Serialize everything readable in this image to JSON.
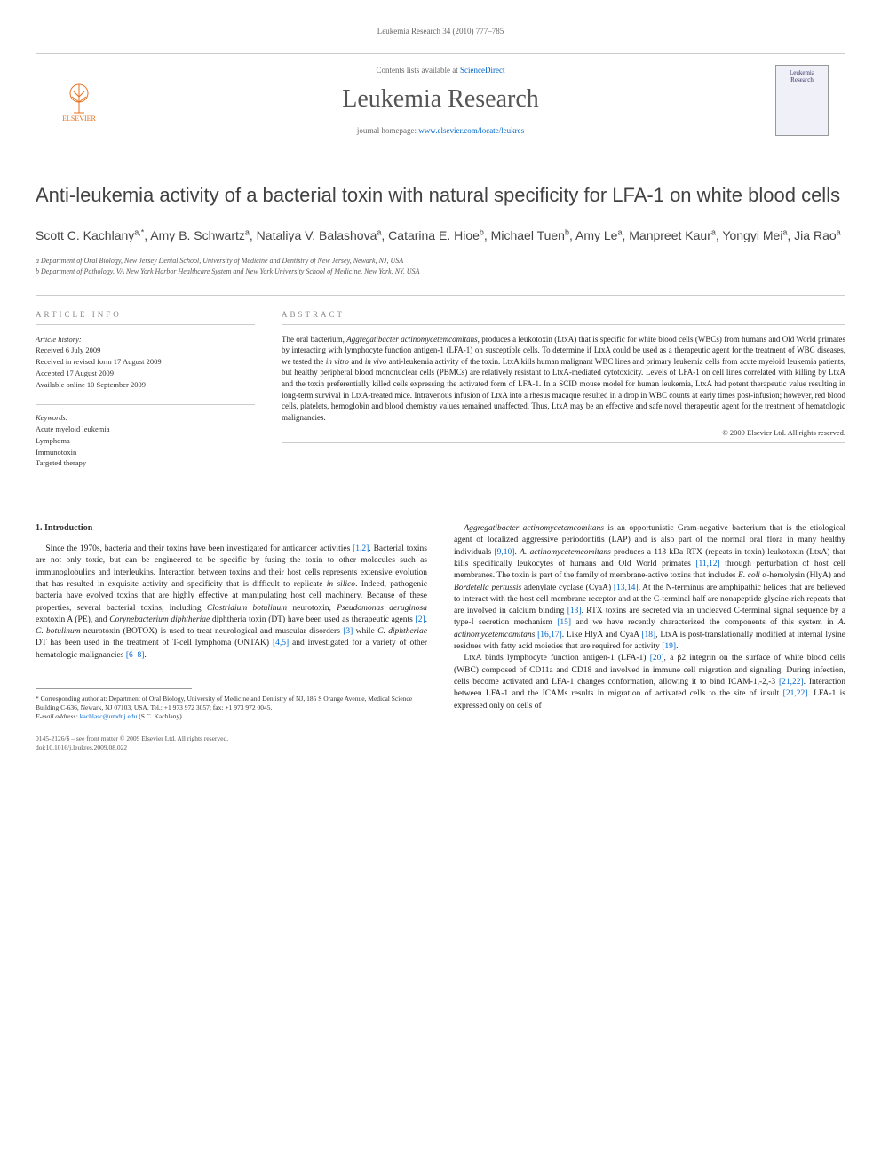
{
  "page_header": "Leukemia Research 34 (2010) 777–785",
  "masthead": {
    "contents_text": "Contents lists available at ",
    "contents_link": "ScienceDirect",
    "journal_title": "Leukemia Research",
    "homepage_label": "journal homepage: ",
    "homepage_url": "www.elsevier.com/locate/leukres",
    "publisher_name": "ELSEVIER",
    "cover_text": "Leukemia Research"
  },
  "article": {
    "title": "Anti-leukemia activity of a bacterial toxin with natural specificity for LFA-1 on white blood cells",
    "authors_html": "Scott C. Kachlany<sup>a,*</sup>, Amy B. Schwartz<sup>a</sup>, Nataliya V. Balashova<sup>a</sup>, Catarina E. Hioe<sup>b</sup>, Michael Tuen<sup>b</sup>, Amy Le<sup>a</sup>, Manpreet Kaur<sup>a</sup>, Yongyi Mei<sup>a</sup>, Jia Rao<sup>a</sup>",
    "affiliations": [
      "a Department of Oral Biology, New Jersey Dental School, University of Medicine and Dentistry of New Jersey, Newark, NJ, USA",
      "b Department of Pathology, VA New York Harbor Healthcare System and New York University School of Medicine, New York, NY, USA"
    ]
  },
  "info": {
    "article_info_label": "ARTICLE INFO",
    "abstract_label": "ABSTRACT",
    "history_head": "Article history:",
    "history": [
      "Received 6 July 2009",
      "Received in revised form 17 August 2009",
      "Accepted 17 August 2009",
      "Available online 10 September 2009"
    ],
    "keywords_head": "Keywords:",
    "keywords": [
      "Acute myeloid leukemia",
      "Lymphoma",
      "Immunotoxin",
      "Targeted therapy"
    ],
    "abstract": "The oral bacterium, Aggregatibacter actinomycetemcomitans, produces a leukotoxin (LtxA) that is specific for white blood cells (WBCs) from humans and Old World primates by interacting with lymphocyte function antigen-1 (LFA-1) on susceptible cells. To determine if LtxA could be used as a therapeutic agent for the treatment of WBC diseases, we tested the in vitro and in vivo anti-leukemia activity of the toxin. LtxA kills human malignant WBC lines and primary leukemia cells from acute myeloid leukemia patients, but healthy peripheral blood mononuclear cells (PBMCs) are relatively resistant to LtxA-mediated cytotoxicity. Levels of LFA-1 on cell lines correlated with killing by LtxA and the toxin preferentially killed cells expressing the activated form of LFA-1. In a SCID mouse model for human leukemia, LtxA had potent therapeutic value resulting in long-term survival in LtxA-treated mice. Intravenous infusion of LtxA into a rhesus macaque resulted in a drop in WBC counts at early times post-infusion; however, red blood cells, platelets, hemoglobin and blood chemistry values remained unaffected. Thus, LtxA may be an effective and safe novel therapeutic agent for the treatment of hematologic malignancies.",
    "copyright": "© 2009 Elsevier Ltd. All rights reserved."
  },
  "body": {
    "section_heading": "1. Introduction",
    "col1_paras": [
      "Since the 1970s, bacteria and their toxins have been investigated for anticancer activities [1,2]. Bacterial toxins are not only toxic, but can be engineered to be specific by fusing the toxin to other molecules such as immunoglobulins and interleukins. Interaction between toxins and their host cells represents extensive evolution that has resulted in exquisite activity and specificity that is difficult to replicate in silico. Indeed, pathogenic bacteria have evolved toxins that are highly effective at manipulating host cell machinery. Because of these properties, several bacterial toxins, including Clostridium botulinum neurotoxin, Pseudomonas aeruginosa exotoxin A (PE), and Corynebacterium diphtheriae diphtheria toxin (DT) have been used as therapeutic agents [2]. C. botulinum neurotoxin (BOTOX) is used to treat neurological and muscular disorders [3] while C. diphtheriae DT has been used in the treatment of T-cell lymphoma (ONTAK) [4,5] and investigated for a variety of other hematologic malignancies [6–8]."
    ],
    "col2_paras": [
      "Aggregatibacter actinomycetemcomitans is an opportunistic Gram-negative bacterium that is the etiological agent of localized aggressive periodontitis (LAP) and is also part of the normal oral flora in many healthy individuals [9,10]. A. actinomycetemcomitans produces a 113 kDa RTX (repeats in toxin) leukotoxin (LtxA) that kills specifically leukocytes of humans and Old World primates [11,12] through perturbation of host cell membranes. The toxin is part of the family of membrane-active toxins that includes E. coli α-hemolysin (HlyA) and Bordetella pertussis adenylate cyclase (CyaA) [13,14]. At the N-terminus are amphipathic helices that are believed to interact with the host cell membrane receptor and at the C-terminal half are nonapeptide glycine-rich repeats that are involved in calcium binding [13]. RTX toxins are secreted via an uncleaved C-terminal signal sequence by a type-I secretion mechanism [15] and we have recently characterized the components of this system in A. actinomycetemcomitans [16,17]. Like HlyA and CyaA [18], LtxA is post-translationally modified at internal lysine residues with fatty acid moieties that are required for activity [19].",
      "LtxA binds lymphocyte function antigen-1 (LFA-1) [20], a β2 integrin on the surface of white blood cells (WBC) composed of CD11a and CD18 and involved in immune cell migration and signaling. During infection, cells become activated and LFA-1 changes conformation, allowing it to bind ICAM-1,-2,-3 [21,22]. Interaction between LFA-1 and the ICAMs results in migration of activated cells to the site of insult [21,22]. LFA-1 is expressed only on cells of"
    ]
  },
  "footnote": {
    "corresponding": "* Corresponding author at: Department of Oral Biology, University of Medicine and Dentistry of NJ, 185 S Orange Avenue, Medical Science Building C-636, Newark, NJ 07103, USA. Tel.: +1 973 972 3057; fax: +1 973 972 0045.",
    "email_label": "E-mail address: ",
    "email": "kachlasc@umdnj.edu",
    "email_person": " (S.C. Kachlany)."
  },
  "footer": {
    "line1": "0145-2126/$ – see front matter © 2009 Elsevier Ltd. All rights reserved.",
    "line2": "doi:10.1016/j.leukres.2009.08.022"
  },
  "colors": {
    "link": "#0066cc",
    "elsevier_orange": "#e9711c",
    "text": "#333333",
    "muted": "#888888",
    "border": "#cccccc"
  },
  "typography": {
    "body_font": "Georgia, Times New Roman, serif",
    "heading_font": "Arial, Helvetica, sans-serif",
    "title_size_pt": 22,
    "journal_title_size_pt": 28,
    "body_size_pt": 9.5,
    "abstract_size_pt": 9
  }
}
